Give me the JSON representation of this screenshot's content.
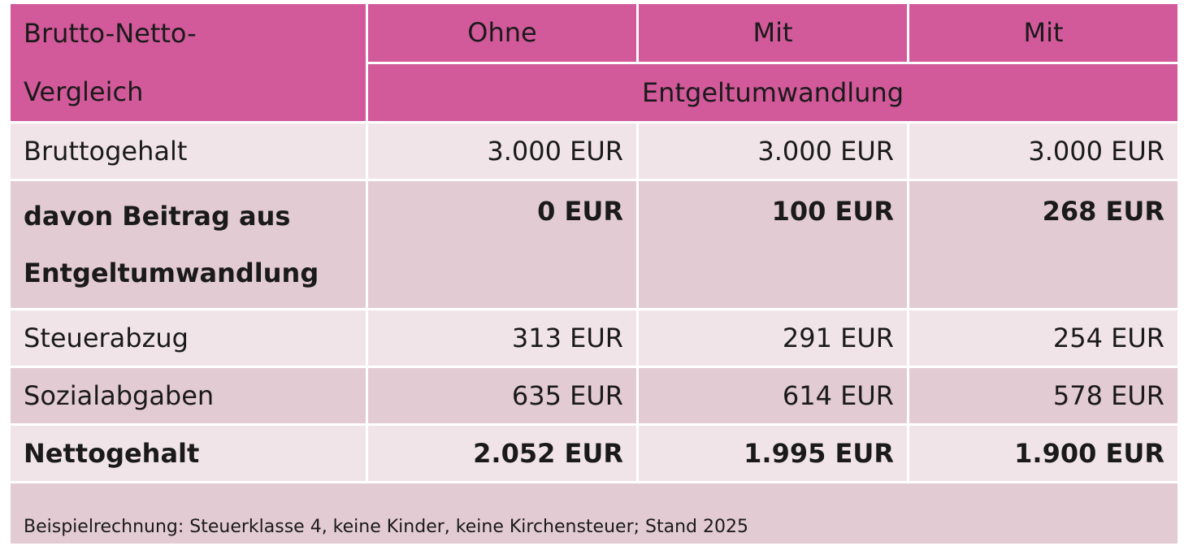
{
  "header": {
    "corner_line1": "Brutto-Netto-",
    "corner_line2": "Vergleich",
    "col1": "Ohne",
    "col2": "Mit",
    "col3": "Mit",
    "span_label": "Entgeltumwandlung"
  },
  "rows": [
    {
      "label": "Bruttogehalt",
      "ohne": "3.000 EUR",
      "mit1": "3.000 EUR",
      "mit2": "3.000 EUR"
    },
    {
      "label_line1": "davon Beitrag aus",
      "label_line2": "Entgeltumwandlung",
      "ohne": "0 EUR",
      "mit1": "100 EUR",
      "mit2": "268 EUR"
    },
    {
      "label": "Steuerabzug",
      "ohne": "313 EUR",
      "mit1": "291 EUR",
      "mit2": "254 EUR"
    },
    {
      "label": "Sozialabgaben",
      "ohne": "635 EUR",
      "mit1": "614 EUR",
      "mit2": "578 EUR"
    },
    {
      "label": "Nettogehalt",
      "ohne": "2.052 EUR",
      "mit1": "1.995 EUR",
      "mit2": "1.900 EUR"
    }
  ],
  "footnote": "Beispielrechnung: Steuerklasse 4, keine Kinder, keine Kirchensteuer; Stand 2025",
  "colors": {
    "header_magenta": "#d2599a",
    "row_light": "#f1e4e8",
    "row_dark": "#e3cbd3"
  }
}
